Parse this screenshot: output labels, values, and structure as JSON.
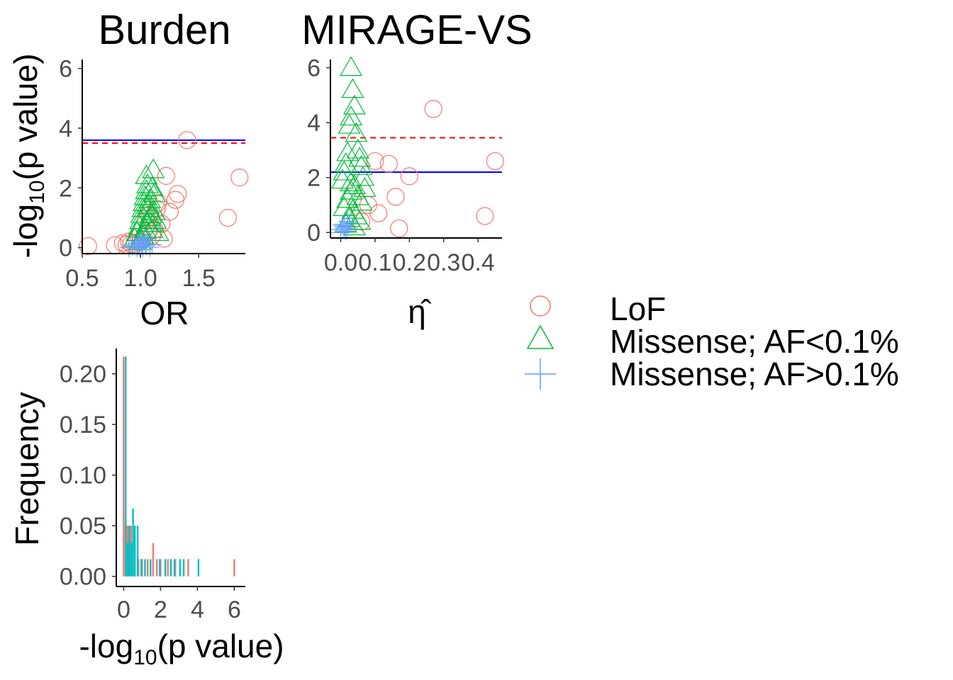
{
  "colors": {
    "lof": "#f8766d",
    "missense_low": "#00ba38",
    "missense_high": "#619cff",
    "hist_a": "#f8766d",
    "hist_b": "#00bfc4",
    "threshold_red": "#ff0000",
    "threshold_blue": "#0000ff"
  },
  "legend": {
    "items": [
      {
        "label": "LoF",
        "shape": "circle",
        "color": "#f8766d"
      },
      {
        "label": "Missense; AF<0.1%",
        "shape": "triangle",
        "color": "#00ba38"
      },
      {
        "label": "Missense; AF>0.1%",
        "shape": "cross",
        "color": "#619cff"
      }
    ]
  },
  "chart_data": [
    {
      "type": "scatter",
      "title": "Burden",
      "xlabel": "OR",
      "ylabel_prefix": "-log",
      "ylabel_sub": "10",
      "ylabel_suffix": "(p value)",
      "xlim": [
        0.5,
        1.9
      ],
      "ylim": [
        -0.2,
        6.3
      ],
      "xticks": [
        {
          "v": 0.5,
          "t": "0.5"
        },
        {
          "v": 1.0,
          "t": "1.0"
        },
        {
          "v": 1.5,
          "t": "1.5"
        }
      ],
      "yticks": [
        {
          "v": 0,
          "t": "0"
        },
        {
          "v": 2,
          "t": "2"
        },
        {
          "v": 4,
          "t": "4"
        },
        {
          "v": 6,
          "t": "6"
        }
      ],
      "hlines": [
        {
          "y": 3.5,
          "color": "#ff0000",
          "dash": true
        },
        {
          "y": 3.6,
          "color": "#0000ff",
          "dash": false
        }
      ],
      "series": [
        {
          "name": "LoF",
          "shape": "circle",
          "color": "#f8766d",
          "x": [
            0.55,
            0.78,
            0.85,
            0.88,
            0.9,
            0.92,
            1.02,
            1.05,
            1.08,
            1.1,
            1.12,
            1.15,
            1.18,
            1.2,
            1.22,
            1.25,
            1.3,
            1.32,
            1.4,
            1.75,
            1.85,
            0.95,
            1.0,
            1.06,
            1.14
          ],
          "y": [
            0.05,
            0.08,
            0.15,
            0.1,
            0.2,
            0.12,
            0.3,
            0.9,
            1.1,
            0.4,
            0.6,
            1.5,
            0.8,
            0.3,
            2.4,
            1.2,
            1.6,
            1.8,
            3.6,
            1.0,
            2.35,
            0.1,
            0.2,
            0.5,
            1.3
          ]
        },
        {
          "name": "Missense; AF<0.1%",
          "shape": "triangle",
          "color": "#00ba38",
          "x": [
            0.95,
            0.97,
            0.99,
            1.0,
            1.01,
            1.02,
            1.03,
            1.04,
            1.05,
            1.06,
            1.07,
            1.08,
            1.09,
            1.1,
            1.11,
            1.12,
            1.13,
            1.15,
            1.0,
            1.02,
            1.04,
            1.06,
            1.08,
            1.1,
            1.12,
            1.05,
            1.07,
            1.09
          ],
          "y": [
            0.3,
            0.5,
            0.7,
            0.9,
            1.1,
            1.3,
            1.5,
            1.7,
            1.9,
            2.1,
            1.4,
            1.0,
            0.8,
            0.6,
            2.6,
            1.2,
            0.9,
            0.5,
            0.2,
            0.4,
            0.6,
            0.8,
            1.6,
            2.0,
            1.8,
            2.4,
            1.3,
            1.1
          ]
        },
        {
          "name": "Missense; AF>0.1%",
          "shape": "cross",
          "color": "#619cff",
          "x": [
            0.9,
            0.93,
            0.95,
            0.97,
            0.98,
            0.99,
            1.0,
            1.01,
            1.02,
            1.03,
            1.04,
            1.05,
            1.06,
            1.08,
            1.1
          ],
          "y": [
            0.0,
            0.05,
            0.1,
            0.0,
            0.15,
            0.05,
            0.2,
            0.1,
            0.0,
            0.25,
            0.1,
            0.05,
            0.3,
            0.0,
            0.1
          ]
        }
      ]
    },
    {
      "type": "scatter",
      "title": "MIRAGE-VS",
      "xlabel": "η̂",
      "xlim": [
        -0.03,
        0.47
      ],
      "ylim": [
        -0.2,
        6.3
      ],
      "xticks": [
        {
          "v": 0.0,
          "t": "0.0"
        },
        {
          "v": 0.1,
          "t": "0.1"
        },
        {
          "v": 0.2,
          "t": "0.2"
        },
        {
          "v": 0.3,
          "t": "0.3"
        },
        {
          "v": 0.4,
          "t": "0.4"
        }
      ],
      "yticks": [
        {
          "v": 0,
          "t": "0"
        },
        {
          "v": 2,
          "t": "2"
        },
        {
          "v": 4,
          "t": "4"
        },
        {
          "v": 6,
          "t": "6"
        }
      ],
      "hlines": [
        {
          "y": 3.45,
          "color": "#ff0000",
          "dash": true
        },
        {
          "y": 2.2,
          "color": "#0000ff",
          "dash": false
        }
      ],
      "series": [
        {
          "name": "LoF",
          "shape": "circle",
          "color": "#f8766d",
          "x": [
            0.27,
            0.1,
            0.14,
            0.2,
            0.16,
            0.11,
            0.17,
            0.45,
            0.42,
            0.08,
            0.06
          ],
          "y": [
            4.5,
            2.6,
            2.5,
            2.05,
            1.3,
            0.7,
            0.15,
            2.6,
            0.6,
            1.0,
            0.4
          ]
        },
        {
          "name": "Missense; AF<0.1%",
          "shape": "triangle",
          "color": "#00ba38",
          "x": [
            0.03,
            0.035,
            0.04,
            0.03,
            0.025,
            0.045,
            0.05,
            0.055,
            0.06,
            0.02,
            0.015,
            0.01,
            0.005,
            0.04,
            0.03,
            0.05,
            0.06,
            0.07,
            0.02,
            0.01,
            0.035,
            0.045,
            0.025,
            0.055,
            0.015,
            0.065,
            0.03,
            0.04
          ],
          "y": [
            6.0,
            5.2,
            4.6,
            4.2,
            3.9,
            3.6,
            3.0,
            2.7,
            2.4,
            2.9,
            2.5,
            2.2,
            1.9,
            1.7,
            1.5,
            1.3,
            1.1,
            1.6,
            1.2,
            0.9,
            0.8,
            0.6,
            0.5,
            0.4,
            0.3,
            2.0,
            1.8,
            0.2
          ]
        },
        {
          "name": "Missense; AF>0.1%",
          "shape": "cross",
          "color": "#619cff",
          "x": [
            0.0,
            0.005,
            0.01,
            0.015,
            0.02,
            0.0,
            0.01,
            0.005,
            0.02,
            0.025
          ],
          "y": [
            0.1,
            0.3,
            0.2,
            0.05,
            0.4,
            0.0,
            0.15,
            0.25,
            0.1,
            0.35
          ]
        }
      ]
    },
    {
      "type": "bar",
      "xlabel_prefix": "-log",
      "xlabel_sub": "10",
      "xlabel_suffix": "(p value)",
      "ylabel": "Frequency",
      "xlim": [
        -0.4,
        6.6
      ],
      "ylim": [
        -0.01,
        0.225
      ],
      "xticks": [
        {
          "v": 0,
          "t": "0"
        },
        {
          "v": 2,
          "t": "2"
        },
        {
          "v": 4,
          "t": "4"
        },
        {
          "v": 6,
          "t": "6"
        }
      ],
      "yticks": [
        {
          "v": 0.0,
          "t": "0.00"
        },
        {
          "v": 0.05,
          "t": "0.05"
        },
        {
          "v": 0.1,
          "t": "0.10"
        },
        {
          "v": 0.15,
          "t": "0.15"
        },
        {
          "v": 0.2,
          "t": "0.20"
        }
      ],
      "series": [
        {
          "name": "Burden",
          "color": "#f8766d",
          "x": [
            0.0,
            0.1,
            0.2,
            0.3,
            0.4,
            0.5,
            0.6,
            0.8,
            1.0,
            1.3,
            1.6,
            1.8,
            2.0,
            2.4,
            2.8,
            3.5,
            6.0
          ],
          "values": [
            0.217,
            0.05,
            0.05,
            0.05,
            0.05,
            0.033,
            0.05,
            0.017,
            0.017,
            0.017,
            0.033,
            0.017,
            0.017,
            0.017,
            0.017,
            0.017,
            0.017
          ]
        },
        {
          "name": "MIRAGE-VS",
          "color": "#00bfc4",
          "x": [
            0.05,
            0.15,
            0.25,
            0.35,
            0.45,
            0.55,
            0.7,
            0.9,
            1.1,
            1.4,
            1.9,
            2.2,
            2.5,
            2.7,
            3.0,
            3.2,
            4.0
          ],
          "values": [
            0.217,
            0.033,
            0.05,
            0.033,
            0.067,
            0.05,
            0.05,
            0.017,
            0.017,
            0.017,
            0.017,
            0.017,
            0.017,
            0.017,
            0.017,
            0.017,
            0.017
          ]
        }
      ]
    }
  ]
}
